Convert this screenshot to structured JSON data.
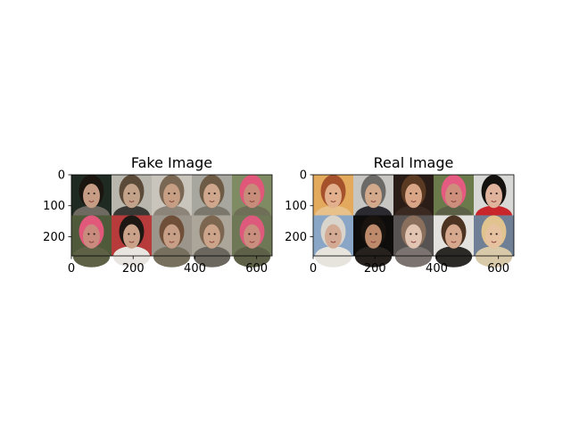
{
  "panels": [
    {
      "title": "Fake Image",
      "x_ticks": [
        "0",
        "200",
        "400",
        "600"
      ],
      "y_ticks": [
        "0",
        "100",
        "200"
      ],
      "x_tick_values": [
        0,
        200,
        400,
        600
      ],
      "y_tick_values": [
        0,
        100,
        200
      ],
      "x_range": [
        0,
        650
      ],
      "y_range": [
        0,
        262
      ],
      "grid": {
        "rows": 2,
        "cols": 5
      },
      "tiles": [
        {
          "bg": "#1f2a22",
          "skin": "#c79c84",
          "hair": "#1b1510",
          "shirt": "#6e6a62"
        },
        {
          "bg": "#b9b6ad",
          "skin": "#c2a38a",
          "hair": "#5c4a38",
          "shirt": "#3a3834"
        },
        {
          "bg": "#c9c5bd",
          "skin": "#c59e83",
          "hair": "#7a6753",
          "shirt": "#8c8478"
        },
        {
          "bg": "#a8a79f",
          "skin": "#cfa78c",
          "hair": "#6d5b45",
          "shirt": "#7b776c"
        },
        {
          "bg": "#7f8b63",
          "skin": "#c88c7a",
          "hair": "#e1577a",
          "shirt": "#6f6f57"
        },
        {
          "bg": "#4f5a3a",
          "skin": "#c98b7d",
          "hair": "#e2587b",
          "shirt": "#5e6146"
        },
        {
          "bg": "#b63b3a",
          "skin": "#caa28a",
          "hair": "#1d1814",
          "shirt": "#e8e4df"
        },
        {
          "bg": "#9c958b",
          "skin": "#c79e86",
          "hair": "#6f4f38",
          "shirt": "#77705f"
        },
        {
          "bg": "#aba59a",
          "skin": "#cca48a",
          "hair": "#7d6650",
          "shirt": "#6b675e"
        },
        {
          "bg": "#6e7857",
          "skin": "#c98e7e",
          "hair": "#de5a7c",
          "shirt": "#5e6148"
        }
      ]
    },
    {
      "title": "Real Image",
      "x_ticks": [
        "0",
        "200",
        "400",
        "600"
      ],
      "y_ticks": [
        "0",
        "100",
        "200"
      ],
      "x_tick_values": [
        0,
        200,
        400,
        600
      ],
      "y_tick_values": [
        0,
        100,
        200
      ],
      "x_range": [
        0,
        650
      ],
      "y_range": [
        0,
        262
      ],
      "grid": {
        "rows": 2,
        "cols": 5
      },
      "tiles": [
        {
          "bg": "#e3a95c",
          "skin": "#e2b08c",
          "hair": "#a5512c",
          "shirt": "#e7c08a"
        },
        {
          "bg": "#c8c6c2",
          "skin": "#d3a98c",
          "hair": "#6b6a66",
          "shirt": "#2a2a30"
        },
        {
          "bg": "#2a1d17",
          "skin": "#d8a587",
          "hair": "#5a3a22",
          "shirt": "#3a2a22"
        },
        {
          "bg": "#6b7a4a",
          "skin": "#cd8f7c",
          "hair": "#e45a80",
          "shirt": "#5c6046"
        },
        {
          "bg": "#d8d9d6",
          "skin": "#e0b39c",
          "hair": "#15110f",
          "shirt": "#c9262b"
        },
        {
          "bg": "#8aa6c6",
          "skin": "#d3ab94",
          "hair": "#d9d4cc",
          "shirt": "#e7e3dd"
        },
        {
          "bg": "#0f0d0c",
          "skin": "#bd8a6c",
          "hair": "#19130f",
          "shirt": "#26211d"
        },
        {
          "bg": "#565352",
          "skin": "#e2c4b2",
          "hair": "#8a6f5c",
          "shirt": "#7a7370"
        },
        {
          "bg": "#e4e2df",
          "skin": "#d6a98f",
          "hair": "#4d3422",
          "shirt": "#2c2a27"
        },
        {
          "bg": "#6f7f95",
          "skin": "#e7c2a0",
          "hair": "#e0c38f",
          "shirt": "#d8c9a8"
        }
      ]
    }
  ]
}
